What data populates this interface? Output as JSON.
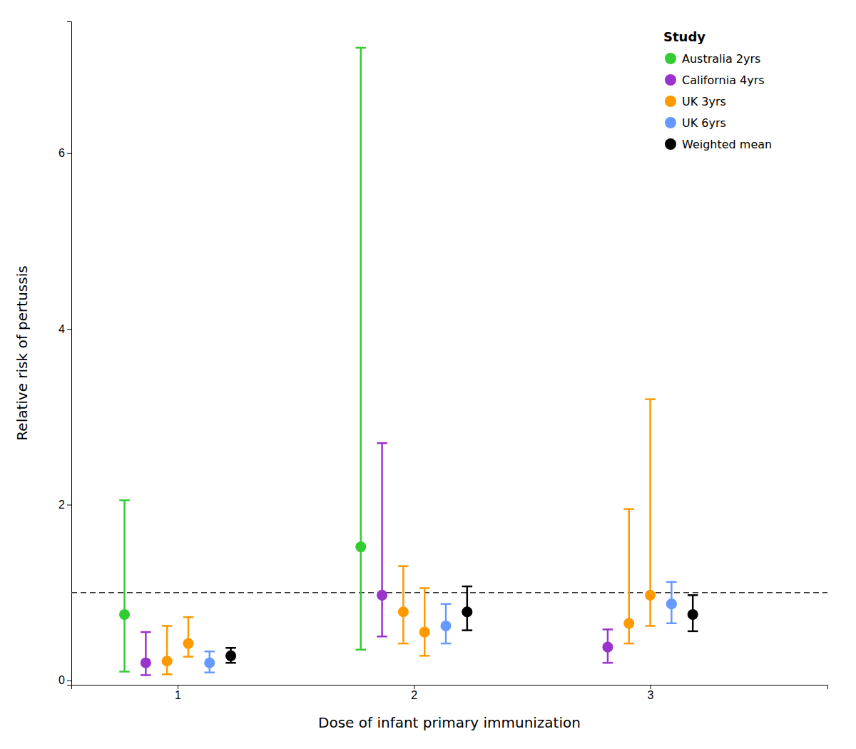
{
  "chart_data": {
    "type": "scatter",
    "title": "",
    "xlabel": "Dose of infant primary immunization",
    "ylabel": "Relative risk of pertussis",
    "xlim": [
      0.55,
      3.75
    ],
    "ylim": [
      -0.05,
      7.5
    ],
    "xticks": [
      1,
      2,
      3
    ],
    "yticks": [
      0,
      2,
      4,
      6
    ],
    "grid": false,
    "reference_y": 1.0,
    "legend": "upper right",
    "legend_title": "Study",
    "series": [
      {
        "name": "Australia 2yrs",
        "color": "#33CC33",
        "marker": "circle",
        "x": [
          1,
          2
        ],
        "values": [
          0.75,
          1.52
        ],
        "lower": [
          0.1,
          0.35
        ],
        "upper": [
          2.05,
          7.2
        ]
      },
      {
        "name": "California 4yrs",
        "color": "#9933CC",
        "marker": "circle",
        "x": [
          1,
          2,
          3
        ],
        "values": [
          0.2,
          0.97,
          0.38
        ],
        "lower": [
          0.06,
          0.5,
          0.2
        ],
        "upper": [
          0.55,
          2.7,
          0.58
        ]
      },
      {
        "name": "UK 3yrs",
        "color": "#FF9900",
        "marker": "circle",
        "x": [
          1,
          1,
          2,
          2,
          3,
          3
        ],
        "values": [
          0.22,
          0.42,
          0.78,
          0.55,
          0.65,
          0.97
        ],
        "lower": [
          0.07,
          0.27,
          0.42,
          0.28,
          0.42,
          0.62
        ],
        "upper": [
          0.62,
          0.72,
          1.3,
          1.05,
          1.95,
          3.2
        ]
      },
      {
        "name": "UK 6yrs",
        "color": "#6699FF",
        "marker": "circle",
        "x": [
          1,
          2,
          3
        ],
        "values": [
          0.2,
          0.62,
          0.87
        ],
        "lower": [
          0.09,
          0.42,
          0.65
        ],
        "upper": [
          0.33,
          0.87,
          1.12
        ]
      },
      {
        "name": "Weighted mean",
        "color": "#000000",
        "marker": "circle",
        "x": [
          1,
          2,
          3
        ],
        "values": [
          0.28,
          0.78,
          0.75
        ],
        "lower": [
          0.2,
          0.57,
          0.56
        ],
        "upper": [
          0.37,
          1.07,
          0.97
        ]
      }
    ]
  }
}
